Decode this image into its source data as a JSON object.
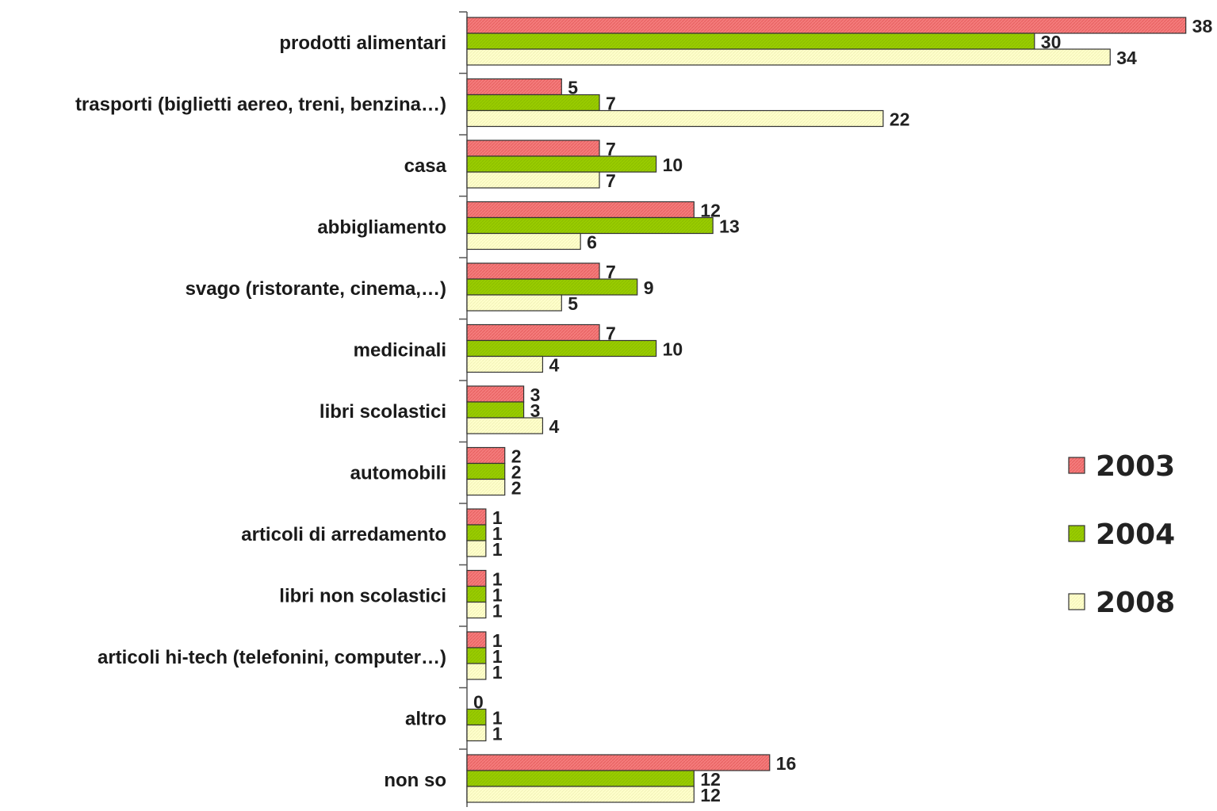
{
  "chart_data": {
    "type": "bar",
    "orientation": "horizontal",
    "categories": [
      "prodotti alimentari",
      "trasporti (biglietti aereo, treni, benzina…)",
      "casa",
      "abbigliamento",
      "svago (ristorante, cinema,…)",
      "medicinali",
      "libri scolastici",
      "automobili",
      "articoli di arredamento",
      "libri non scolastici",
      "articoli hi-tech (telefonini, computer…)",
      "altro",
      "non so"
    ],
    "series": [
      {
        "name": "2003",
        "color": "#f47c7c",
        "values": [
          38,
          5,
          7,
          12,
          7,
          7,
          3,
          2,
          1,
          1,
          1,
          0,
          16
        ]
      },
      {
        "name": "2004",
        "color": "#99cc00",
        "values": [
          30,
          7,
          10,
          13,
          9,
          10,
          3,
          2,
          1,
          1,
          1,
          1,
          12
        ]
      },
      {
        "name": "2008",
        "color": "#ffffcc",
        "values": [
          34,
          22,
          7,
          6,
          5,
          4,
          4,
          2,
          1,
          1,
          1,
          1,
          12
        ]
      }
    ],
    "xlim": [
      0,
      38
    ],
    "grid": false,
    "legend_position": "right"
  }
}
